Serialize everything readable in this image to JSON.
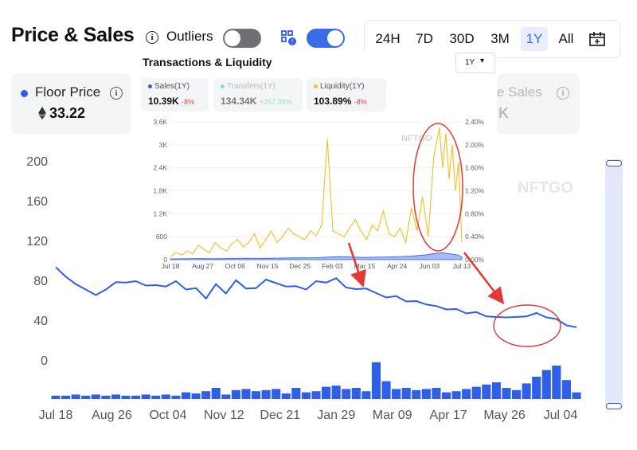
{
  "header": {
    "title": "Price & Sales",
    "outliers_label": "Outliers",
    "outliers_on": false,
    "sales_toggle_on": true,
    "ranges": [
      "24H",
      "7D",
      "30D",
      "3M",
      "1Y",
      "All"
    ],
    "active_range": "1Y"
  },
  "cards": {
    "floor_label": "Floor Price",
    "floor_value": "33.22",
    "sales_label": "e Sales",
    "sales_partial": "K"
  },
  "colors": {
    "accent": "#2f5ee8",
    "liquidity": "#f4c430",
    "transfers": "#7fe0dc",
    "annotation": "#e53935"
  },
  "inset": {
    "title": "Transactions & Liquidity",
    "select_value": "1Y",
    "watermark": "NFTGO",
    "legend": [
      {
        "name": "Sales(1Y)",
        "value": "10.39K",
        "delta": "-8%",
        "color": "#2f5ee8"
      },
      {
        "name": "Transfers(1Y)",
        "value": "134.34K",
        "delta": "+257.39%",
        "color": "#7fe0dc"
      },
      {
        "name": "Liquidity(1Y)",
        "value": "103.89%",
        "delta": "-8%",
        "color": "#f4c430"
      }
    ]
  },
  "chart_data": [
    {
      "type": "line",
      "title": "Price & Sales",
      "x_tick_labels": [
        "Jul 18",
        "Aug 26",
        "Oct 04",
        "Nov 12",
        "Dec 21",
        "Jan 29",
        "Mar 09",
        "Apr 17",
        "May 26",
        "Jul 04"
      ],
      "y_ticks": [
        0,
        40,
        80,
        120,
        160,
        200
      ],
      "ylim": [
        -40,
        210
      ],
      "series": [
        {
          "type": "line",
          "x": [
            0,
            7,
            14,
            21,
            28,
            35,
            42,
            49,
            56,
            63,
            70,
            77,
            84,
            91,
            98,
            105,
            112,
            119,
            126,
            133,
            140,
            147,
            154,
            161,
            168,
            175,
            182,
            189,
            196,
            203,
            210,
            217,
            224,
            231,
            238,
            245,
            252,
            259,
            266,
            273,
            280,
            287,
            294,
            301,
            308,
            315,
            322,
            329,
            336,
            343,
            350,
            357,
            364
          ],
          "values": [
            92,
            85,
            75,
            72,
            64,
            72,
            77,
            79,
            78,
            76,
            74,
            75,
            78,
            72,
            71,
            63,
            75,
            68,
            79,
            73,
            71,
            82,
            76,
            75,
            73,
            72,
            78,
            79,
            81,
            74,
            70,
            73,
            66,
            64,
            63,
            60,
            58,
            57,
            53,
            52,
            50,
            48,
            47,
            45,
            42,
            44,
            42,
            45,
            46,
            44,
            40,
            36,
            33
          ]
        },
        {
          "type": "bar",
          "x": [
            0,
            7,
            14,
            21,
            28,
            35,
            42,
            49,
            56,
            63,
            70,
            77,
            84,
            91,
            98,
            105,
            112,
            119,
            126,
            133,
            140,
            147,
            154,
            161,
            168,
            175,
            182,
            189,
            196,
            203,
            210,
            217,
            224,
            231,
            238,
            245,
            252,
            259,
            266,
            273,
            280,
            287,
            294,
            301,
            308,
            315,
            322,
            329,
            336,
            343,
            350,
            357,
            364
          ],
          "values": [
            3,
            3,
            4,
            3,
            4,
            3,
            4,
            3,
            3,
            4,
            3,
            4,
            3,
            6,
            5,
            7,
            10,
            4,
            8,
            9,
            7,
            8,
            9,
            5,
            10,
            6,
            7,
            11,
            12,
            9,
            10,
            7,
            33,
            16,
            9,
            10,
            8,
            9,
            10,
            6,
            7,
            9,
            11,
            13,
            15,
            10,
            8,
            14,
            20,
            26,
            30,
            17,
            6
          ]
        }
      ]
    },
    {
      "type": "line",
      "title": "Transactions & Liquidity",
      "x_tick_labels": [
        "Jul 18",
        "Aug 27",
        "Oct 06",
        "Nov 15",
        "Dec 25",
        "Feb 03",
        "Mar 15",
        "Apr 24",
        "Jun 03",
        "Jul 13"
      ],
      "y_left_ticks": [
        "0",
        "600",
        "1.2K",
        "1.8K",
        "2.4K",
        "3K",
        "3.6K"
      ],
      "y_right_ticks": [
        "0.00%",
        "0.40%",
        "0.80%",
        "1.20%",
        "1.60%",
        "2.00%",
        "2.40%"
      ],
      "ylim_left": [
        0,
        3600
      ],
      "ylim_right": [
        0,
        2.4
      ],
      "series": [
        {
          "name": "Liquidity(1Y)",
          "x": [
            0,
            7,
            14,
            21,
            28,
            35,
            42,
            49,
            56,
            63,
            70,
            77,
            84,
            91,
            98,
            105,
            112,
            119,
            126,
            133,
            140,
            147,
            154,
            161,
            168,
            175,
            182,
            189,
            196,
            203,
            210,
            217,
            224,
            231,
            238,
            245,
            252,
            259,
            266,
            273,
            280,
            287,
            294,
            301,
            308,
            315,
            322,
            329,
            336,
            340,
            344,
            348,
            352,
            356,
            360,
            364
          ],
          "values": [
            0.05,
            0.12,
            0.08,
            0.15,
            0.1,
            0.25,
            0.18,
            0.12,
            0.3,
            0.2,
            0.15,
            0.28,
            0.35,
            0.22,
            0.3,
            0.45,
            0.2,
            0.35,
            0.5,
            0.3,
            0.4,
            0.55,
            0.45,
            0.4,
            0.35,
            0.5,
            0.42,
            0.6,
            2.1,
            0.5,
            0.45,
            0.4,
            0.55,
            0.7,
            0.5,
            0.35,
            0.6,
            0.5,
            0.85,
            0.45,
            0.4,
            0.55,
            0.3,
            0.9,
            0.5,
            1.1,
            0.4,
            1.8,
            2.3,
            1.6,
            2.2,
            1.4,
            2.0,
            1.2,
            1.7,
            0.3
          ]
        },
        {
          "name": "Sales(1Y)",
          "x": [
            0,
            30,
            60,
            90,
            120,
            150,
            180,
            210,
            240,
            270,
            300,
            320,
            330,
            340,
            350,
            360,
            364
          ],
          "values": [
            20,
            30,
            25,
            40,
            35,
            45,
            50,
            80,
            60,
            70,
            90,
            130,
            160,
            180,
            150,
            120,
            60
          ]
        }
      ]
    }
  ]
}
